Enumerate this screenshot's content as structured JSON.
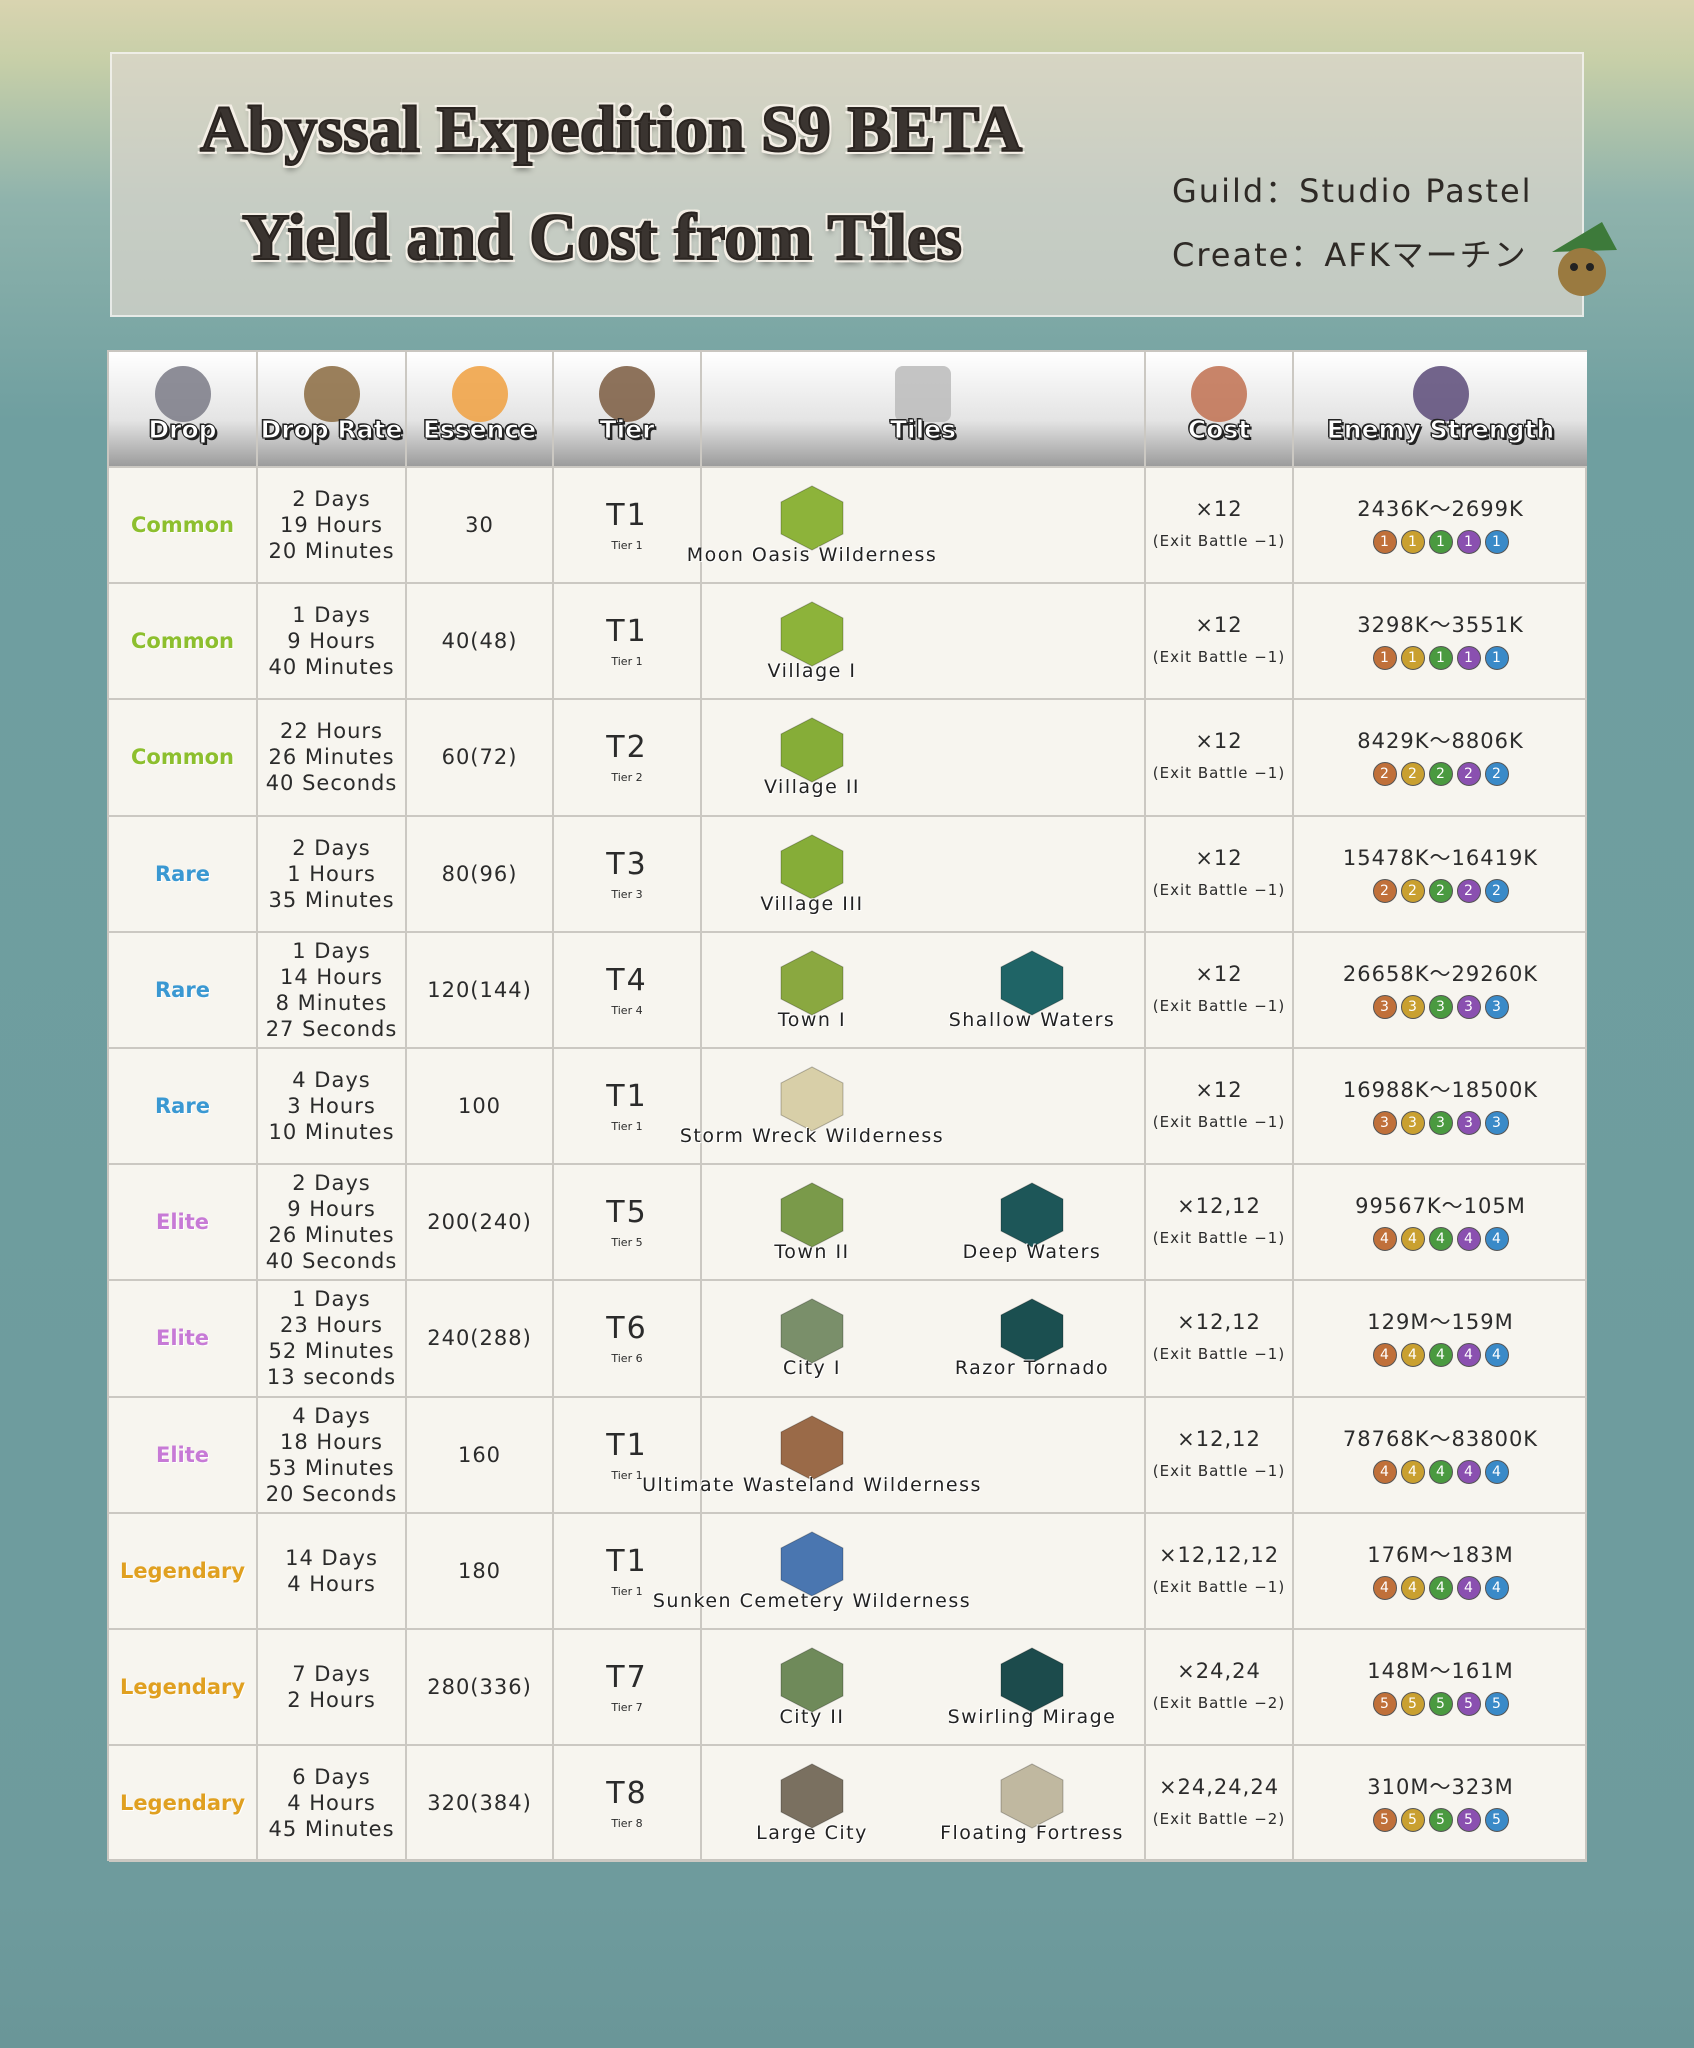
{
  "header": {
    "title": [
      "Abyssal Expedition S9 BETA",
      "Yield and Cost from Tiles"
    ],
    "guild": "Guild：Studio Pastel",
    "creator": "Create：AFKマーチン"
  },
  "table": {
    "headers": [
      "Drop",
      "Drop Rate",
      "Essence",
      "Tier",
      "Tiles",
      "Cost",
      "Enemy Strength"
    ],
    "rows": [
      {
        "drop": "Common",
        "drop_color": "#8dbf2e",
        "drop_rate": [
          "2 Days",
          "19 Hours",
          "20 Minutes"
        ],
        "essence": "30",
        "tier": "T1",
        "tier_sub": "Tier 1",
        "tiles": [
          "Moon Oasis Wilderness"
        ],
        "cost": "×12",
        "exit_battle": "(Exit Battle −1)",
        "enemy_strength": "2436K～2699K",
        "enemy_level": "1"
      },
      {
        "drop": "Common",
        "drop_color": "#8dbf2e",
        "drop_rate": [
          "1 Days",
          "9 Hours",
          "40 Minutes"
        ],
        "essence": "40(48)",
        "tier": "T1",
        "tier_sub": "Tier 1",
        "tiles": [
          "Village I"
        ],
        "cost": "×12",
        "exit_battle": "(Exit Battle −1)",
        "enemy_strength": "3298K～3551K",
        "enemy_level": "1"
      },
      {
        "drop": "Common",
        "drop_color": "#8dbf2e",
        "drop_rate": [
          "22 Hours",
          "26 Minutes",
          "40 Seconds"
        ],
        "essence": "60(72)",
        "tier": "T2",
        "tier_sub": "Tier 2",
        "tiles": [
          "Village II"
        ],
        "cost": "×12",
        "exit_battle": "(Exit Battle −1)",
        "enemy_strength": "8429K～8806K",
        "enemy_level": "2"
      },
      {
        "drop": "Rare",
        "drop_color": "#3a98d2",
        "drop_rate": [
          "2 Days",
          "1 Hours",
          "35 Minutes"
        ],
        "essence": "80(96)",
        "tier": "T3",
        "tier_sub": "Tier 3",
        "tiles": [
          "Village III"
        ],
        "cost": "×12",
        "exit_battle": "(Exit Battle −1)",
        "enemy_strength": "15478K～16419K",
        "enemy_level": "2"
      },
      {
        "drop": "Rare",
        "drop_color": "#3a98d2",
        "drop_rate": [
          "1 Days",
          "14 Hours",
          "8 Minutes",
          "27 Seconds"
        ],
        "essence": "120(144)",
        "tier": "T4",
        "tier_sub": "Tier 4",
        "tiles": [
          "Town I",
          "Shallow Waters"
        ],
        "cost": "×12",
        "exit_battle": "(Exit Battle −1)",
        "enemy_strength": "26658K～29260K",
        "enemy_level": "3"
      },
      {
        "drop": "Rare",
        "drop_color": "#3a98d2",
        "drop_rate": [
          "4 Days",
          "3 Hours",
          "10 Minutes"
        ],
        "essence": "100",
        "tier": "T1",
        "tier_sub": "Tier 1",
        "tiles": [
          "Storm Wreck Wilderness"
        ],
        "cost": "×12",
        "exit_battle": "(Exit Battle −1)",
        "enemy_strength": "16988K～18500K",
        "enemy_level": "3"
      },
      {
        "drop": "Elite",
        "drop_color": "#c77ad6",
        "drop_rate": [
          "2 Days",
          "9 Hours",
          "26 Minutes",
          "40 Seconds"
        ],
        "essence": "200(240)",
        "tier": "T5",
        "tier_sub": "Tier 5",
        "tiles": [
          "Town II",
          "Deep Waters"
        ],
        "cost": "×12,12",
        "exit_battle": "(Exit Battle −1)",
        "enemy_strength": "99567K～105M",
        "enemy_level": "4"
      },
      {
        "drop": "Elite",
        "drop_color": "#c77ad6",
        "drop_rate": [
          "1 Days",
          "23 Hours",
          "52 Minutes",
          "13 seconds"
        ],
        "essence": "240(288)",
        "tier": "T6",
        "tier_sub": "Tier 6",
        "tiles": [
          "City I",
          "Razor Tornado"
        ],
        "cost": "×12,12",
        "exit_battle": "(Exit Battle −1)",
        "enemy_strength": "129M～159M",
        "enemy_level": "4"
      },
      {
        "drop": "Elite",
        "drop_color": "#c77ad6",
        "drop_rate": [
          "4 Days",
          "18 Hours",
          "53 Minutes",
          "20 Seconds"
        ],
        "essence": "160",
        "tier": "T1",
        "tier_sub": "Tier 1",
        "tiles": [
          "Ultimate Wasteland Wilderness"
        ],
        "cost": "×12,12",
        "exit_battle": "(Exit Battle −1)",
        "enemy_strength": "78768K～83800K",
        "enemy_level": "4"
      },
      {
        "drop": "Legendary",
        "drop_color": "#e0a020",
        "drop_rate": [
          "14 Days",
          "4 Hours"
        ],
        "essence": "180",
        "tier": "T1",
        "tier_sub": "Tier 1",
        "tiles": [
          "Sunken Cemetery Wilderness"
        ],
        "cost": "×12,12,12",
        "exit_battle": "(Exit Battle −1)",
        "enemy_strength": "176M～183M",
        "enemy_level": "4"
      },
      {
        "drop": "Legendary",
        "drop_color": "#e0a020",
        "drop_rate": [
          "7 Days",
          "2 Hours"
        ],
        "essence": "280(336)",
        "tier": "T7",
        "tier_sub": "Tier 7",
        "tiles": [
          "City II",
          "Swirling Mirage"
        ],
        "cost": "×24,24",
        "exit_battle": "(Exit Battle −2)",
        "enemy_strength": "148M～161M",
        "enemy_level": "5"
      },
      {
        "drop": "Legendary",
        "drop_color": "#e0a020",
        "drop_rate": [
          "6 Days",
          "4 Hours",
          "45 Minutes"
        ],
        "essence": "320(384)",
        "tier": "T8",
        "tier_sub": "Tier 8",
        "tiles": [
          "Large City",
          "Floating Fortress"
        ],
        "cost": "×24,24,24",
        "exit_battle": "(Exit Battle −2)",
        "enemy_strength": "310M～323M",
        "enemy_level": "5"
      }
    ]
  }
}
